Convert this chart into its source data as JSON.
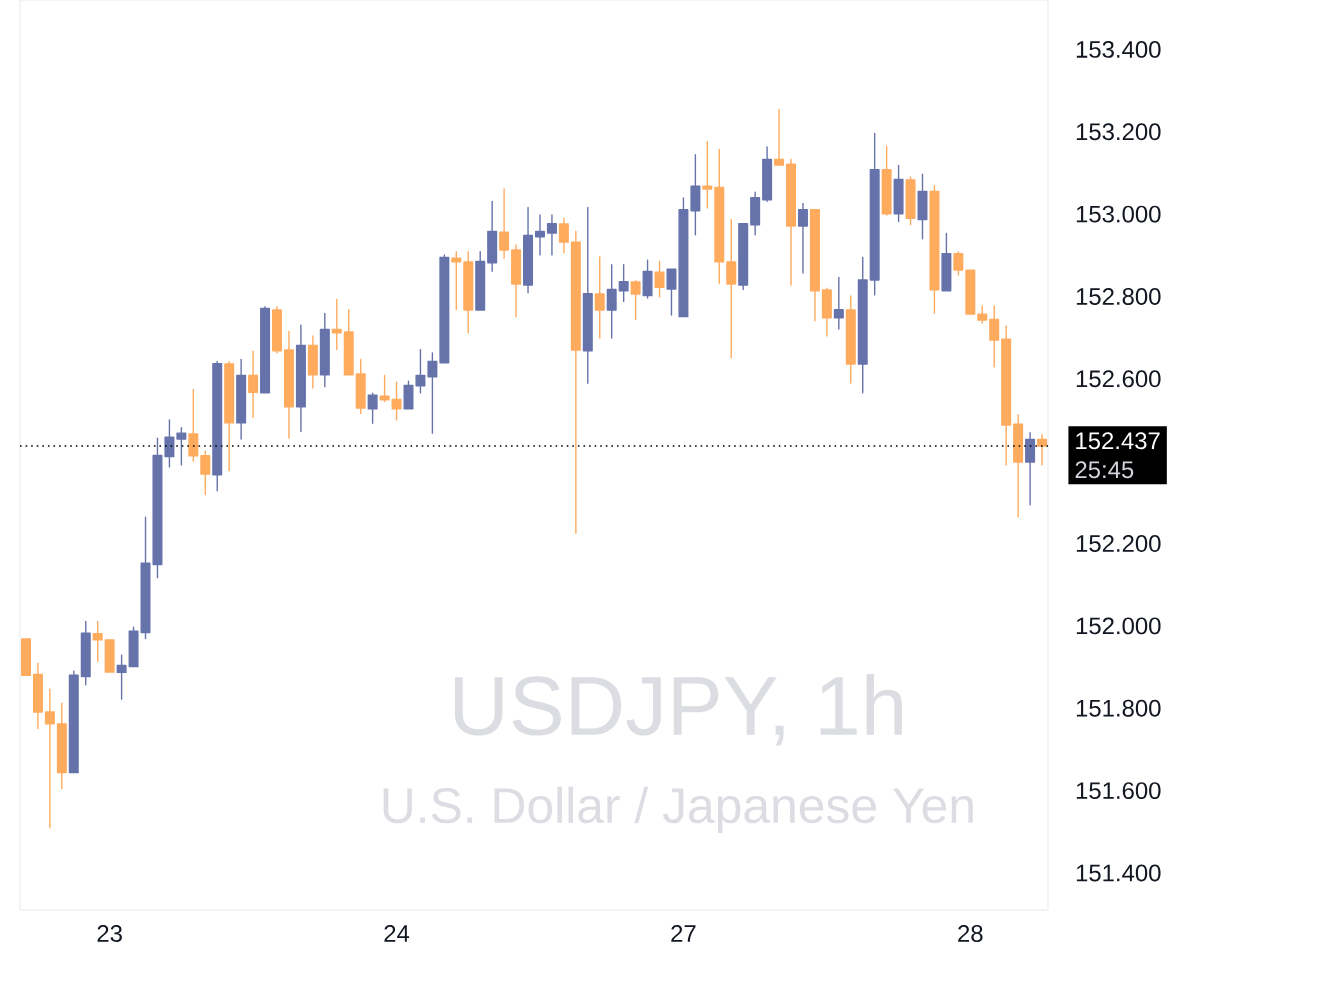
{
  "chart_data": {
    "type": "candlestick",
    "title": "USDJPY, 1h",
    "subtitle": "U.S. Dollar / Japanese Yen",
    "categories": [
      null,
      null,
      null,
      null,
      null,
      null,
      null,
      "23",
      null,
      null,
      null,
      null,
      null,
      null,
      null,
      null,
      null,
      null,
      null,
      null,
      null,
      null,
      null,
      null,
      null,
      null,
      null,
      null,
      null,
      null,
      null,
      "24",
      null,
      null,
      null,
      null,
      null,
      null,
      null,
      null,
      null,
      null,
      null,
      null,
      null,
      null,
      null,
      null,
      null,
      null,
      null,
      null,
      null,
      null,
      null,
      "27",
      null,
      null,
      null,
      null,
      null,
      null,
      null,
      null,
      null,
      null,
      null,
      null,
      null,
      null,
      null,
      null,
      null,
      null,
      null,
      null,
      null,
      null,
      null,
      "28",
      null,
      null,
      null,
      null,
      null,
      null
    ],
    "ohlc": [
      [
        151.968,
        151.968,
        151.88,
        151.88
      ],
      [
        151.882,
        151.909,
        151.751,
        151.791
      ],
      [
        151.791,
        151.846,
        151.51,
        151.762
      ],
      [
        151.762,
        151.812,
        151.605,
        151.644
      ],
      [
        151.644,
        151.89,
        151.644,
        151.88
      ],
      [
        151.877,
        152.011,
        151.857,
        151.982
      ],
      [
        151.981,
        152.011,
        151.914,
        151.966
      ],
      [
        151.966,
        151.966,
        151.888,
        151.888
      ],
      [
        151.887,
        151.929,
        151.822,
        151.904
      ],
      [
        151.901,
        151.997,
        151.901,
        151.987
      ],
      [
        151.984,
        152.264,
        151.969,
        152.152
      ],
      [
        152.149,
        152.456,
        152.117,
        152.414
      ],
      [
        152.411,
        152.5,
        152.386,
        152.458
      ],
      [
        152.454,
        152.481,
        152.391,
        152.468
      ],
      [
        152.466,
        152.574,
        152.4,
        152.413
      ],
      [
        152.413,
        152.424,
        152.319,
        152.369
      ],
      [
        152.367,
        152.642,
        152.328,
        152.637
      ],
      [
        152.636,
        152.642,
        152.377,
        152.493
      ],
      [
        152.493,
        152.647,
        152.454,
        152.608
      ],
      [
        152.608,
        152.667,
        152.506,
        152.567
      ],
      [
        152.566,
        152.775,
        152.566,
        152.771
      ],
      [
        152.767,
        152.775,
        152.663,
        152.668
      ],
      [
        152.67,
        152.715,
        152.456,
        152.532
      ],
      [
        152.532,
        152.73,
        152.472,
        152.681
      ],
      [
        152.681,
        152.704,
        152.578,
        152.61
      ],
      [
        152.61,
        152.759,
        152.581,
        152.72
      ],
      [
        152.72,
        152.793,
        152.671,
        152.712
      ],
      [
        152.714,
        152.768,
        152.61,
        152.61
      ],
      [
        152.612,
        152.647,
        152.516,
        152.529
      ],
      [
        152.527,
        152.565,
        152.492,
        152.56
      ],
      [
        152.558,
        152.608,
        152.545,
        152.549
      ],
      [
        152.55,
        152.592,
        152.5,
        152.527
      ],
      [
        152.527,
        152.594,
        152.527,
        152.584
      ],
      [
        152.583,
        152.671,
        152.566,
        152.608
      ],
      [
        152.605,
        152.663,
        152.468,
        152.642
      ],
      [
        152.639,
        152.901,
        152.639,
        152.895
      ],
      [
        152.893,
        152.909,
        152.768,
        152.884
      ],
      [
        152.884,
        152.909,
        152.712,
        152.767
      ],
      [
        152.767,
        152.909,
        152.767,
        152.885
      ],
      [
        152.882,
        153.031,
        152.861,
        152.958
      ],
      [
        152.956,
        153.061,
        152.893,
        152.913
      ],
      [
        152.913,
        152.925,
        152.751,
        152.83
      ],
      [
        152.828,
        153.016,
        152.809,
        152.948
      ],
      [
        152.945,
        152.998,
        152.901,
        152.958
      ],
      [
        152.954,
        152.998,
        152.901,
        152.977
      ],
      [
        152.976,
        152.99,
        152.906,
        152.932
      ],
      [
        152.932,
        152.958,
        152.225,
        152.67
      ],
      [
        152.668,
        153.016,
        152.589,
        152.807
      ],
      [
        152.806,
        152.896,
        152.699,
        152.767
      ],
      [
        152.767,
        152.877,
        152.699,
        152.817
      ],
      [
        152.814,
        152.877,
        152.788,
        152.836
      ],
      [
        152.835,
        152.838,
        152.744,
        152.806
      ],
      [
        152.802,
        152.888,
        152.796,
        152.861
      ],
      [
        152.859,
        152.885,
        152.799,
        152.822
      ],
      [
        152.818,
        152.866,
        152.755,
        152.866
      ],
      [
        152.751,
        153.039,
        152.751,
        153.011
      ],
      [
        153.008,
        153.144,
        152.95,
        153.068
      ],
      [
        153.068,
        153.176,
        153.015,
        153.061
      ],
      [
        153.065,
        153.157,
        152.832,
        152.884
      ],
      [
        152.884,
        152.987,
        152.651,
        152.83
      ],
      [
        152.828,
        152.977,
        152.817,
        152.977
      ],
      [
        152.974,
        153.053,
        152.95,
        153.04
      ],
      [
        153.035,
        153.163,
        153.031,
        153.133
      ],
      [
        153.133,
        153.254,
        153.119,
        153.119
      ],
      [
        153.121,
        153.133,
        152.828,
        152.971
      ],
      [
        152.971,
        153.026,
        152.857,
        153.011
      ],
      [
        153.011,
        153.011,
        152.741,
        152.814
      ],
      [
        152.816,
        152.82,
        152.704,
        152.748
      ],
      [
        152.748,
        152.846,
        152.721,
        152.768
      ],
      [
        152.767,
        152.801,
        152.59,
        152.636
      ],
      [
        152.636,
        152.895,
        152.566,
        152.84
      ],
      [
        152.84,
        153.196,
        152.804,
        153.108
      ],
      [
        153.108,
        153.165,
        152.998,
        153.001
      ],
      [
        153.001,
        153.118,
        152.982,
        153.084
      ],
      [
        153.083,
        153.09,
        152.974,
        152.99
      ],
      [
        152.987,
        153.097,
        152.94,
        153.055
      ],
      [
        153.055,
        153.069,
        152.76,
        152.816
      ],
      [
        152.814,
        152.953,
        152.814,
        152.904
      ],
      [
        152.904,
        152.909,
        152.852,
        152.864
      ],
      [
        152.864,
        152.864,
        152.757,
        152.757
      ],
      [
        152.757,
        152.777,
        152.735,
        152.743
      ],
      [
        152.744,
        152.777,
        152.629,
        152.694
      ],
      [
        152.696,
        152.728,
        152.391,
        152.488
      ],
      [
        152.49,
        152.513,
        152.265,
        152.398
      ],
      [
        152.398,
        152.469,
        152.294,
        152.453
      ],
      [
        152.453,
        152.464,
        152.391,
        152.437
      ]
    ],
    "colors": [
      "#ffab5e",
      "#ffab5e",
      "#ffab5e",
      "#ffab5e",
      "#6673ab",
      "#6673ab",
      "#ffab5e",
      "#ffab5e",
      "#6673ab",
      "#6673ab",
      "#6673ab",
      "#6673ab",
      "#6673ab",
      "#6673ab",
      "#ffab5e",
      "#ffab5e",
      "#6673ab",
      "#ffab5e",
      "#6673ab",
      "#ffab5e",
      "#6673ab",
      "#ffab5e",
      "#ffab5e",
      "#6673ab",
      "#ffab5e",
      "#6673ab",
      "#ffab5e",
      "#ffab5e",
      "#ffab5e",
      "#6673ab",
      "#ffab5e",
      "#ffab5e",
      "#6673ab",
      "#6673ab",
      "#6673ab",
      "#6673ab",
      "#ffab5e",
      "#ffab5e",
      "#6673ab",
      "#6673ab",
      "#ffab5e",
      "#ffab5e",
      "#6673ab",
      "#6673ab",
      "#6673ab",
      "#ffab5e",
      "#ffab5e",
      "#6673ab",
      "#ffab5e",
      "#6673ab",
      "#6673ab",
      "#ffab5e",
      "#6673ab",
      "#ffab5e",
      "#6673ab",
      "#6673ab",
      "#6673ab",
      "#ffab5e",
      "#ffab5e",
      "#ffab5e",
      "#6673ab",
      "#6673ab",
      "#6673ab",
      "#ffab5e",
      "#ffab5e",
      "#6673ab",
      "#ffab5e",
      "#ffab5e",
      "#6673ab",
      "#ffab5e",
      "#6673ab",
      "#6673ab",
      "#ffab5e",
      "#6673ab",
      "#ffab5e",
      "#6673ab",
      "#ffab5e",
      "#6673ab",
      "#ffab5e",
      "#ffab5e",
      "#ffab5e",
      "#ffab5e",
      "#ffab5e",
      "#ffab5e",
      "#6673ab",
      "#ffab5e"
    ],
    "ylim": [
      151.31,
      153.52
    ],
    "yticks": [
      {
        "value": 151.4,
        "label": "151.400"
      },
      {
        "value": 151.6,
        "label": "151.600"
      },
      {
        "value": 151.8,
        "label": "151.800"
      },
      {
        "value": 152.0,
        "label": "152.000"
      },
      {
        "value": 152.2,
        "label": "152.200"
      },
      {
        "value": 152.6,
        "label": "152.600"
      },
      {
        "value": 152.8,
        "label": "152.800"
      },
      {
        "value": 153.0,
        "label": "153.000"
      },
      {
        "value": 153.2,
        "label": "153.200"
      },
      {
        "value": 153.4,
        "label": "153.400"
      }
    ],
    "ref_lines": [
      {
        "axis": "y",
        "value": 152.437,
        "label": "152.437",
        "color": "#000000",
        "line_style": "dotted"
      }
    ],
    "annotations": [
      "25:45"
    ],
    "grid": false
  }
}
